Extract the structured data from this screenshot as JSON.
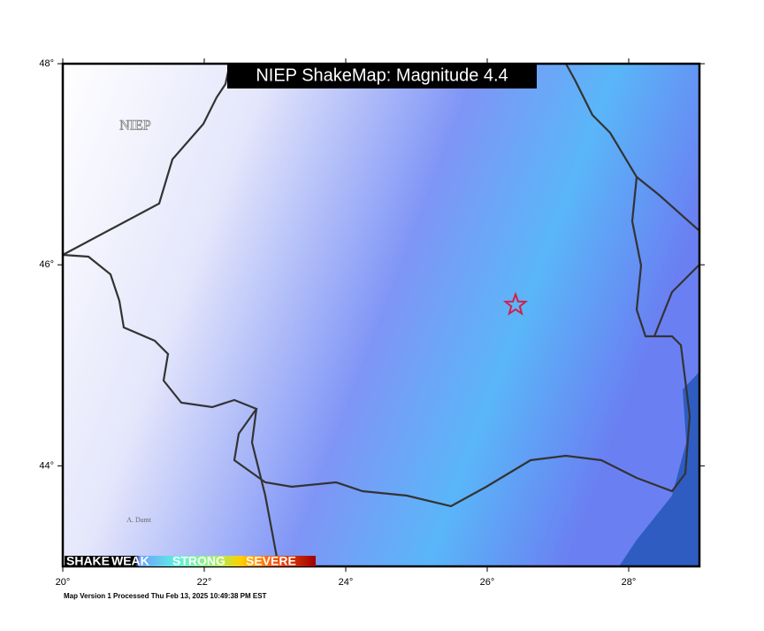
{
  "header": {
    "title": "NIEP ShakeMap: Magnitude 4.4"
  },
  "map": {
    "xlim": [
      20,
      29
    ],
    "ylim": [
      43,
      48
    ],
    "xticks": [
      {
        "value": 20,
        "label": "20°"
      },
      {
        "value": 22,
        "label": "22°"
      },
      {
        "value": 24,
        "label": "24°"
      },
      {
        "value": 26,
        "label": "26°"
      },
      {
        "value": 28,
        "label": "28°"
      }
    ],
    "yticks": [
      {
        "value": 44,
        "label": "44°"
      },
      {
        "value": 46,
        "label": "46°"
      },
      {
        "value": 48,
        "label": "48°"
      }
    ],
    "epicenter": {
      "lon": 26.4,
      "lat": 45.6
    },
    "watermark": "NIEP",
    "credit": "A. Damt"
  },
  "legend": {
    "labels": [
      "SHAKE",
      "WEAK",
      "STRONG",
      "SEVERE"
    ]
  },
  "footer": "Map Version 1 Processed Thu Feb 13, 2025 10:49:38 PM EST"
}
